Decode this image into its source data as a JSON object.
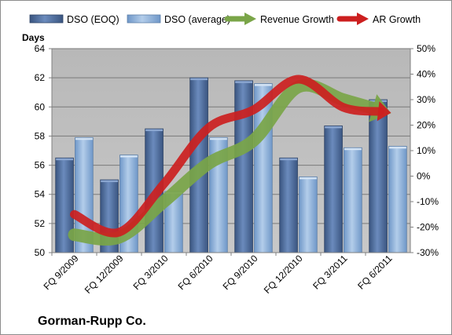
{
  "chart_data": {
    "type": "bar",
    "categories": [
      "FQ 9/2009",
      "FQ 12/2009",
      "FQ 3/2010",
      "FQ 6/2010",
      "FQ 9/2010",
      "FQ 12/2010",
      "FQ 3/2011",
      "FQ 6/2011"
    ],
    "series": [
      {
        "name": "DSO (EOQ)",
        "type": "bar",
        "axis": "left",
        "values": [
          56.5,
          55.0,
          58.5,
          62.0,
          61.8,
          56.5,
          58.7,
          60.5
        ]
      },
      {
        "name": "DSO (average)",
        "type": "bar",
        "axis": "left",
        "values": [
          57.9,
          56.7,
          54.2,
          57.9,
          61.6,
          55.2,
          57.2,
          57.3
        ]
      },
      {
        "name": "Revenue Growth",
        "type": "line",
        "axis": "right",
        "values": [
          -23,
          -24,
          -10,
          5,
          14,
          35,
          30,
          25
        ]
      },
      {
        "name": "AR Growth",
        "type": "line",
        "axis": "right",
        "values": [
          -15,
          -22,
          -3,
          19,
          26,
          38,
          27,
          25
        ]
      }
    ],
    "left_axis": {
      "label": "Days",
      "min": 50,
      "max": 64,
      "step": 2,
      "ticks": [
        "50",
        "52",
        "54",
        "56",
        "58",
        "60",
        "62",
        "64"
      ]
    },
    "right_axis": {
      "label": "",
      "min": -30,
      "max": 50,
      "step": 10,
      "ticks": [
        "-30%",
        "-20%",
        "-10%",
        "0%",
        "10%",
        "20%",
        "30%",
        "40%",
        "50%"
      ]
    },
    "caption": "Gorman-Rupp Co.",
    "legend_position": "top",
    "grid": true,
    "colors": {
      "dso_eoq": "#4f6d9a",
      "dso_avg": "#8fb3dc",
      "revenue_growth": "#7aa548",
      "ar_growth": "#cc1f1f",
      "plot_bg": "#c0c0c0"
    }
  }
}
